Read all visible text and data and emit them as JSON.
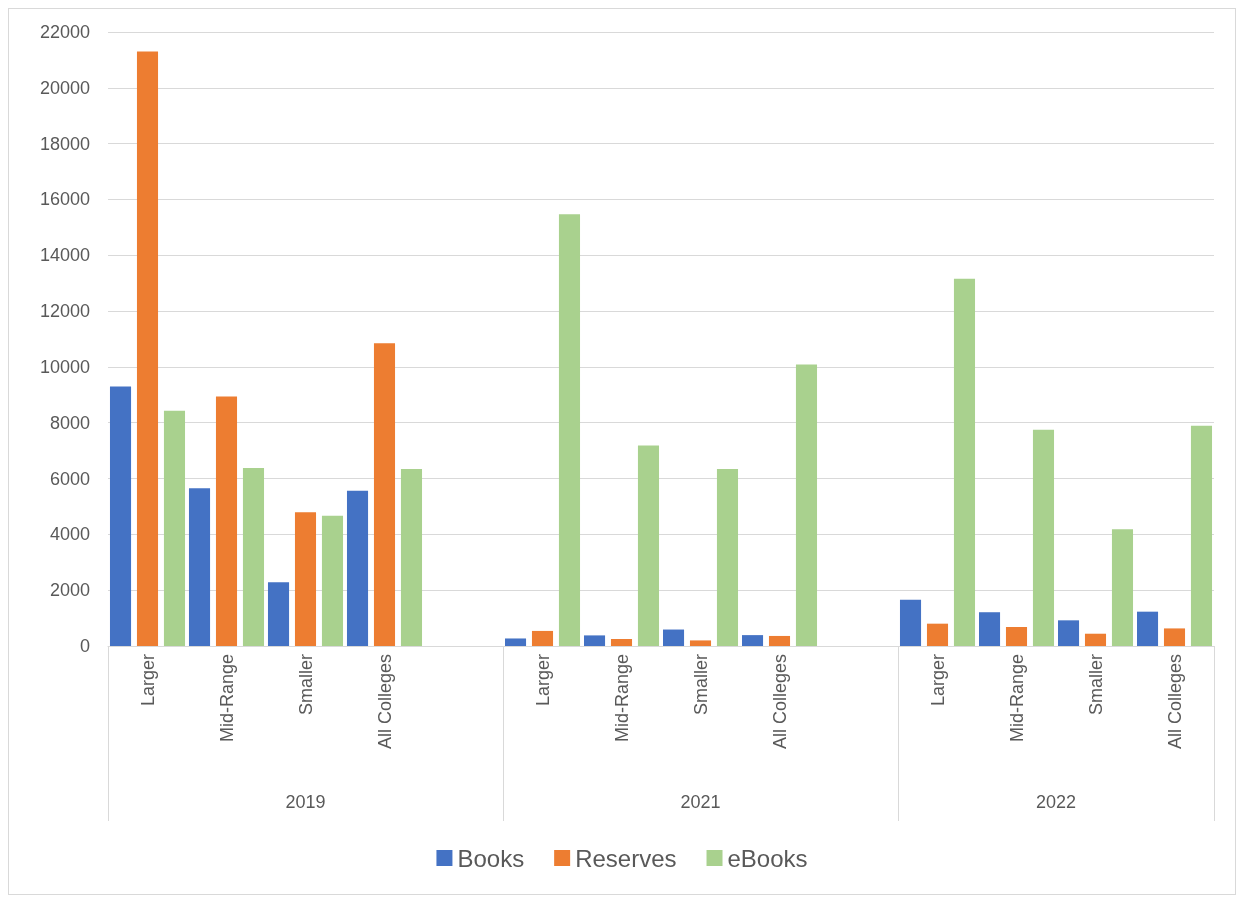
{
  "chart_data": {
    "type": "bar",
    "categories": [
      "Larger",
      "Mid-Range",
      "Smaller",
      "All Colleges",
      null,
      "Larger",
      "Mid-Range",
      "Smaller",
      "All Colleges",
      null,
      "Larger",
      "Mid-Range",
      "Smaller",
      "All Colleges"
    ],
    "series": [
      {
        "name": "Books",
        "color": "#4472c4",
        "values": [
          9300,
          5650,
          2280,
          5560,
          null,
          270,
          380,
          590,
          390,
          null,
          1660,
          1210,
          920,
          1230
        ]
      },
      {
        "name": "Reserves",
        "color": "#ed7d31",
        "values": [
          21300,
          8940,
          4790,
          10850,
          null,
          540,
          250,
          200,
          360,
          null,
          800,
          680,
          440,
          630
        ]
      },
      {
        "name": "eBooks",
        "color": "#a9d18e",
        "values": [
          8430,
          6380,
          4670,
          6340,
          null,
          15470,
          7180,
          6340,
          10090,
          null,
          13160,
          7750,
          4180,
          7890
        ]
      }
    ],
    "ylim": [
      0,
      22000
    ],
    "yticks": [
      0,
      2000,
      4000,
      6000,
      8000,
      10000,
      12000,
      14000,
      16000,
      18000,
      20000,
      22000
    ],
    "grid": "y",
    "legend": "bottom",
    "annotations": [
      "2019",
      "2021",
      "2022"
    ]
  }
}
